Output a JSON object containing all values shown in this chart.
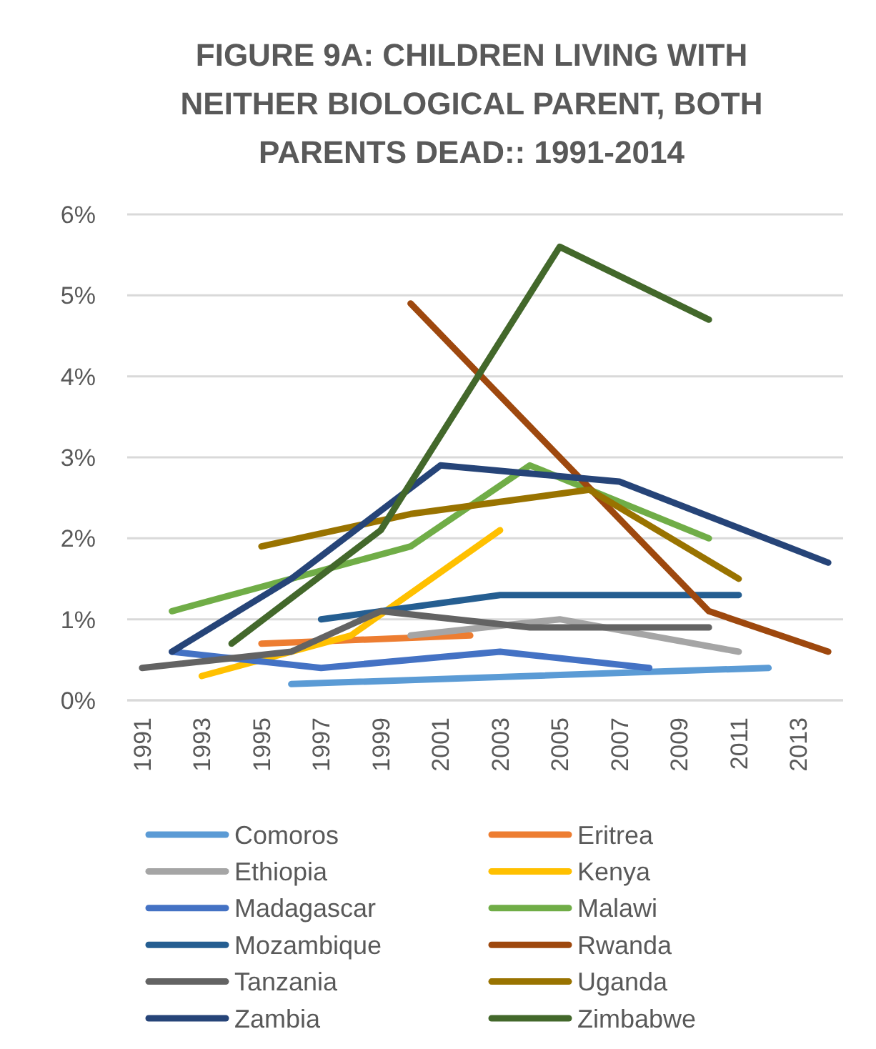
{
  "chart_data": {
    "type": "line",
    "title": "FIGURE 9A: CHILDREN LIVING WITH NEITHER BIOLOGICAL PARENT, BOTH PARENTS DEAD:: 1991-2014",
    "xlim": [
      1990.5,
      2014.5
    ],
    "xticks": [
      1991,
      1993,
      1995,
      1997,
      1999,
      2001,
      2003,
      2005,
      2007,
      2009,
      2011,
      2013
    ],
    "ylim": [
      0,
      6
    ],
    "yticks": [
      {
        "value": 0,
        "label": "0%"
      },
      {
        "value": 1,
        "label": "1%"
      },
      {
        "value": 2,
        "label": "2%"
      },
      {
        "value": 3,
        "label": "3%"
      },
      {
        "value": 4,
        "label": "4%"
      },
      {
        "value": 5,
        "label": "5%"
      },
      {
        "value": 6,
        "label": "6%"
      }
    ],
    "grid": "y",
    "legend": "bottom",
    "marker": "none",
    "line_style": "solid",
    "series": [
      {
        "name": "Comoros",
        "color": "#5b9bd5",
        "x": [
          1996,
          2012
        ],
        "values": [
          0.2,
          0.4
        ]
      },
      {
        "name": "Eritrea",
        "color": "#ed7d31",
        "x": [
          1995,
          2002
        ],
        "values": [
          0.7,
          0.8
        ]
      },
      {
        "name": "Ethiopia",
        "color": "#a5a5a5",
        "x": [
          2000,
          2005,
          2011
        ],
        "values": [
          0.8,
          1.0,
          0.6
        ]
      },
      {
        "name": "Kenya",
        "color": "#ffc000",
        "x": [
          1993,
          1998,
          2003
        ],
        "values": [
          0.3,
          0.8,
          2.1
        ]
      },
      {
        "name": "Madagascar",
        "color": "#4472c4",
        "x": [
          1992,
          1997,
          2003,
          2008
        ],
        "values": [
          0.6,
          0.4,
          0.6,
          0.4
        ]
      },
      {
        "name": "Malawi",
        "color": "#70ad47",
        "x": [
          1992,
          2000,
          2004,
          2010
        ],
        "values": [
          1.1,
          1.9,
          2.9,
          2.0
        ]
      },
      {
        "name": "Mozambique",
        "color": "#255e91",
        "x": [
          1997,
          2003,
          2011
        ],
        "values": [
          1.0,
          1.3,
          1.3
        ]
      },
      {
        "name": "Rwanda",
        "color": "#9e480e",
        "x": [
          2000,
          2010,
          2014
        ],
        "values": [
          4.9,
          1.1,
          0.6
        ]
      },
      {
        "name": "Tanzania",
        "color": "#636363",
        "x": [
          1991,
          1996,
          1999,
          2004,
          2010
        ],
        "values": [
          0.4,
          0.6,
          1.1,
          0.9,
          0.9
        ]
      },
      {
        "name": "Uganda",
        "color": "#997300",
        "x": [
          1995,
          2000,
          2006,
          2011
        ],
        "values": [
          1.9,
          2.3,
          2.6,
          1.5
        ]
      },
      {
        "name": "Zambia",
        "color": "#264478",
        "x": [
          1992,
          1996,
          2001,
          2007,
          2014
        ],
        "values": [
          0.6,
          1.5,
          2.9,
          2.7,
          1.7
        ]
      },
      {
        "name": "Zimbabwe",
        "color": "#43682b",
        "x": [
          1994,
          1999,
          2005,
          2010
        ],
        "values": [
          0.7,
          2.1,
          5.6,
          4.7
        ]
      }
    ]
  }
}
